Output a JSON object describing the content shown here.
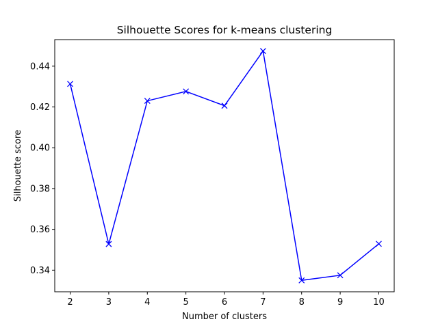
{
  "chart_data": {
    "type": "line",
    "title": "Silhouette Scores for k-means clustering",
    "xlabel": "Number of clusters",
    "ylabel": "Silhouette score",
    "x": [
      2,
      3,
      4,
      5,
      6,
      7,
      8,
      9,
      10
    ],
    "series": [
      {
        "values": [
          0.4313,
          0.3528,
          0.423,
          0.4276,
          0.4206,
          0.4474,
          0.335,
          0.3375,
          0.3529
        ],
        "color": "#0000ff",
        "marker": "x"
      }
    ],
    "xticks": [
      2,
      3,
      4,
      5,
      6,
      7,
      8,
      9,
      10
    ],
    "yticks": [
      0.34,
      0.36,
      0.38,
      0.4,
      0.42,
      0.44
    ],
    "ytick_labels": [
      "0.34",
      "0.36",
      "0.38",
      "0.40",
      "0.42",
      "0.44"
    ],
    "xlim": [
      1.6,
      10.4
    ],
    "ylim": [
      0.3294,
      0.453
    ],
    "grid": false
  }
}
